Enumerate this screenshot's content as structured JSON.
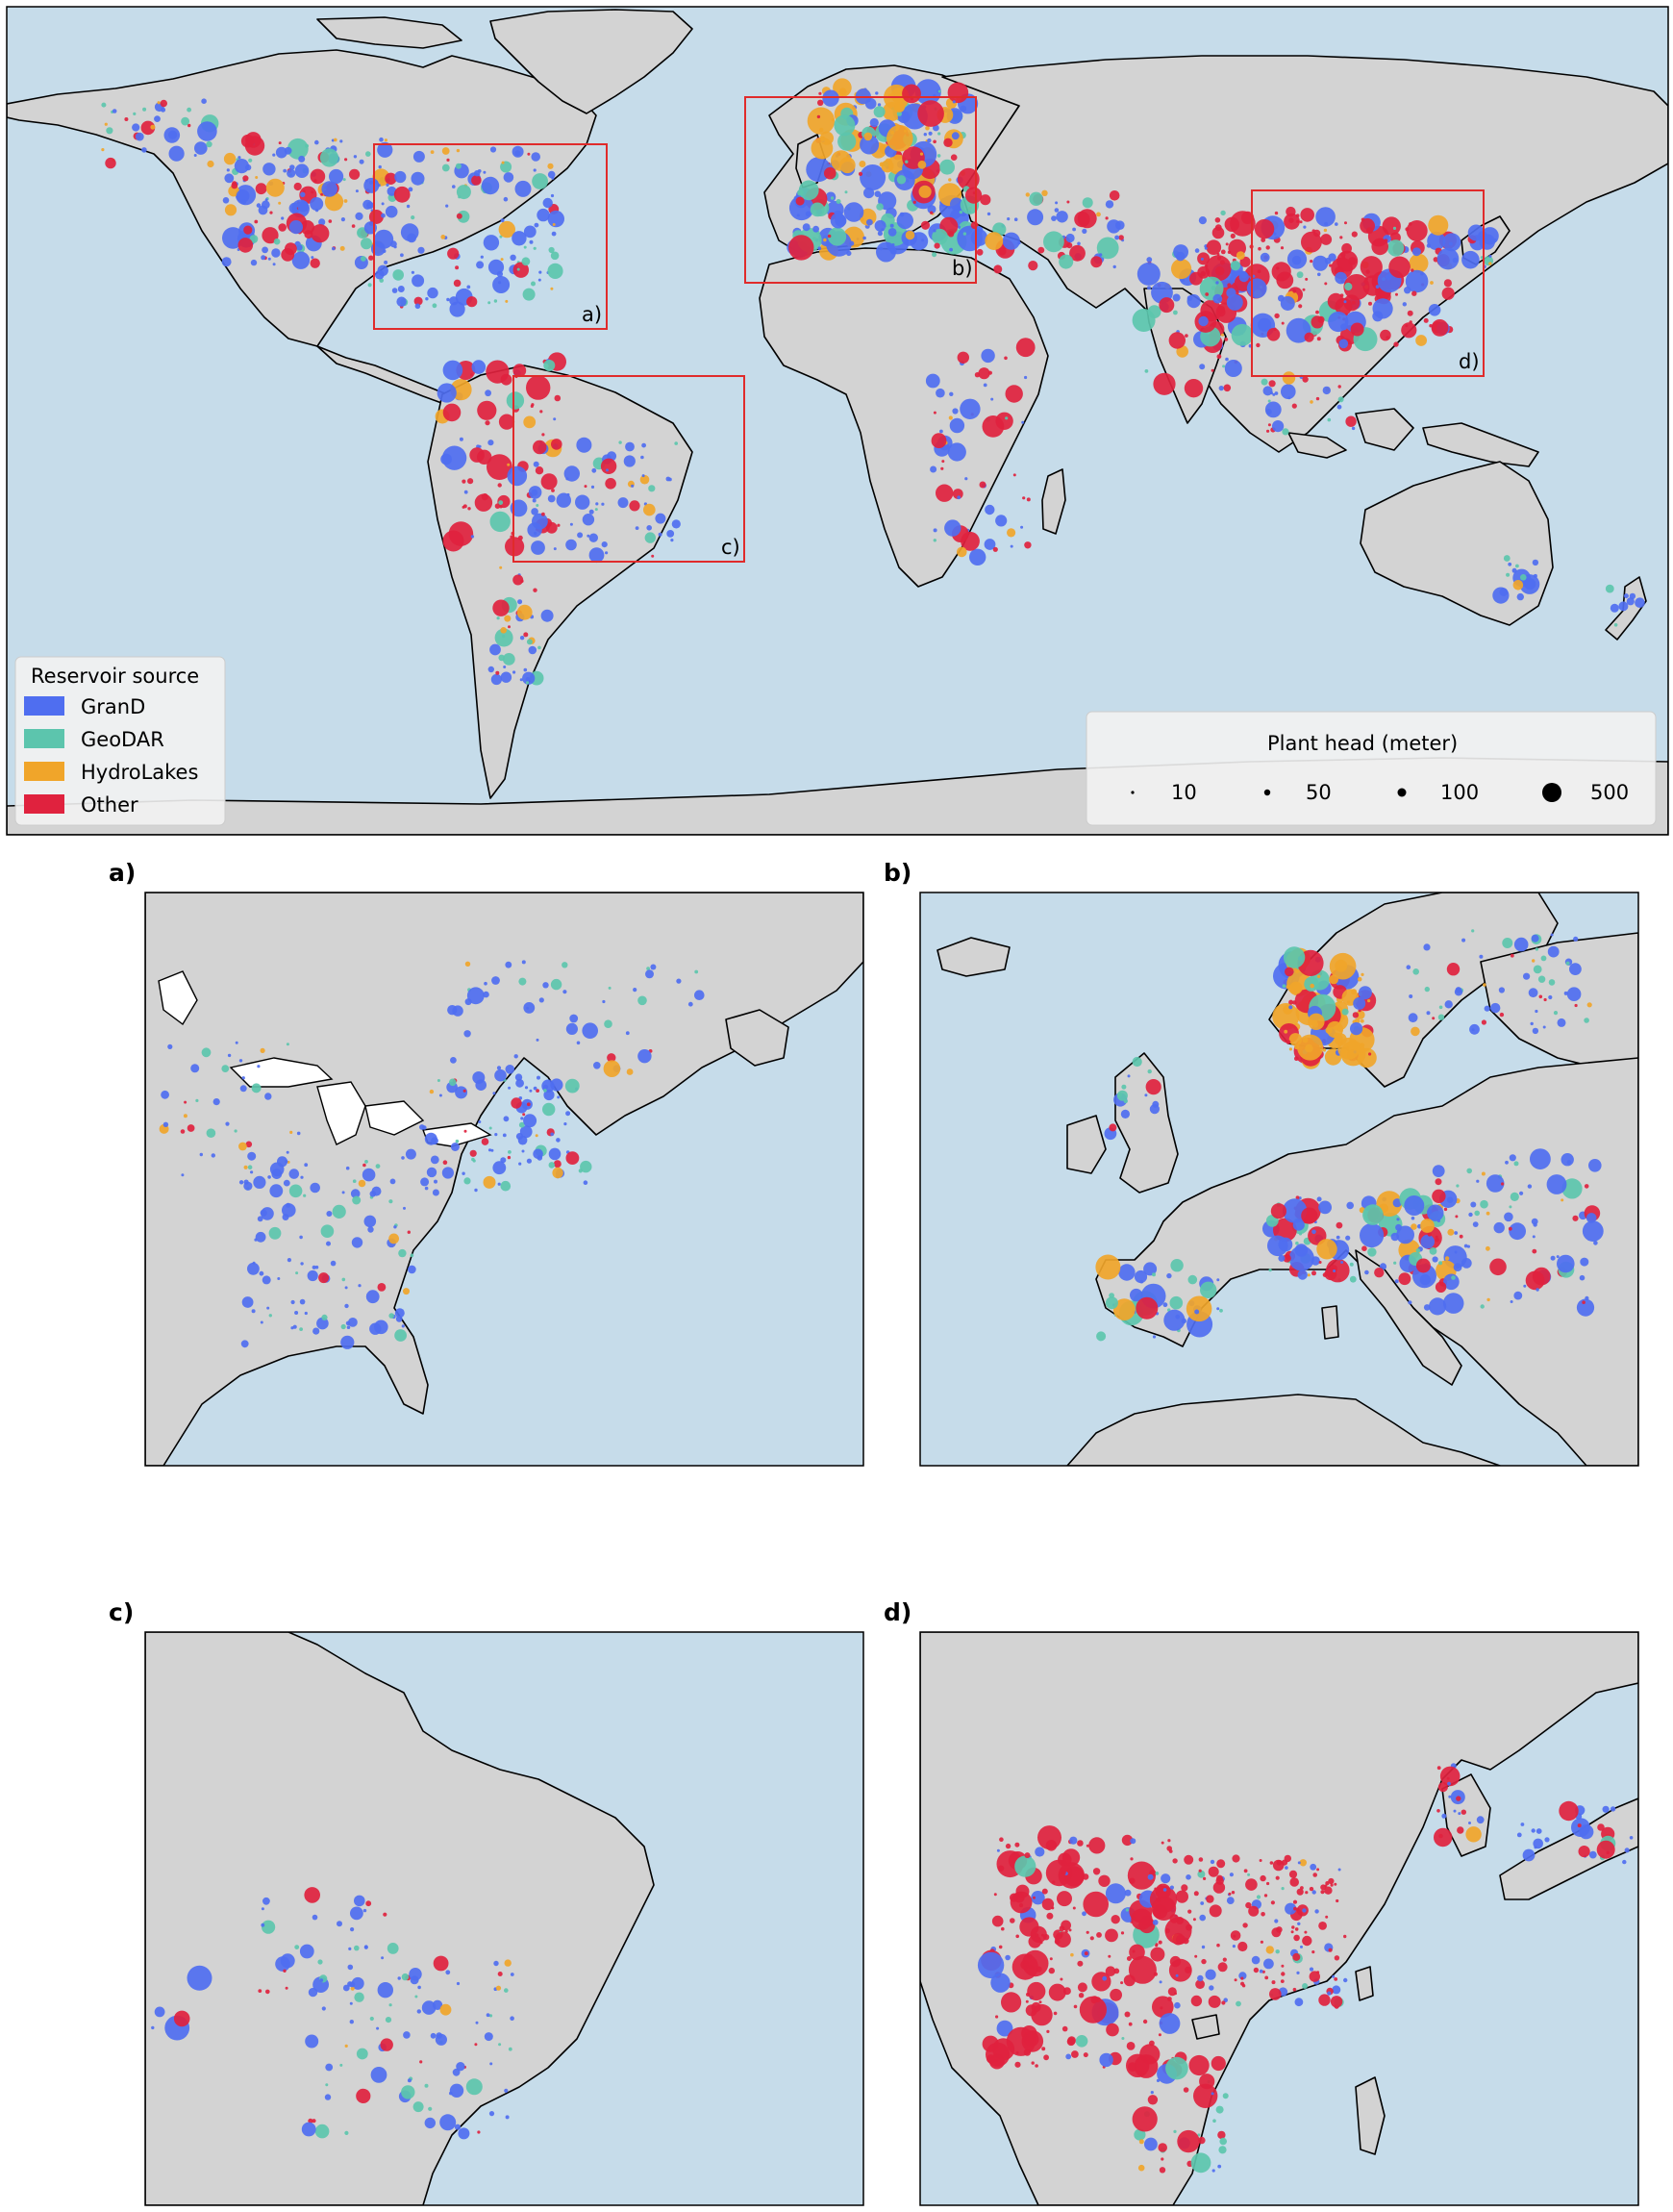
{
  "colors": {
    "GranD": "#4f6ef0",
    "GeoDAR": "#5cc5ad",
    "HydroLakes": "#f0a52a",
    "Other": "#e0223e",
    "ocean": "#c6dcea",
    "land": "#d3d3d3",
    "zoom_box": "#e02b2b"
  },
  "main_map": {
    "box_labels": [
      "a)",
      "b)",
      "c)",
      "d)"
    ],
    "legend_source": {
      "title": "Reservoir source",
      "entries": [
        "GranD",
        "GeoDAR",
        "HydroLakes",
        "Other"
      ]
    },
    "legend_head": {
      "title": "Plant head (meter)",
      "entries": [
        {
          "label": "10",
          "value": 10
        },
        {
          "label": "50",
          "value": 50
        },
        {
          "label": "100",
          "value": 100
        },
        {
          "label": "500",
          "value": 500
        }
      ]
    }
  },
  "panels": [
    {
      "label": "a)",
      "region": "Eastern North America"
    },
    {
      "label": "b)",
      "region": "Europe"
    },
    {
      "label": "c)",
      "region": "Eastern South America"
    },
    {
      "label": "d)",
      "region": "East Asia"
    }
  ]
}
